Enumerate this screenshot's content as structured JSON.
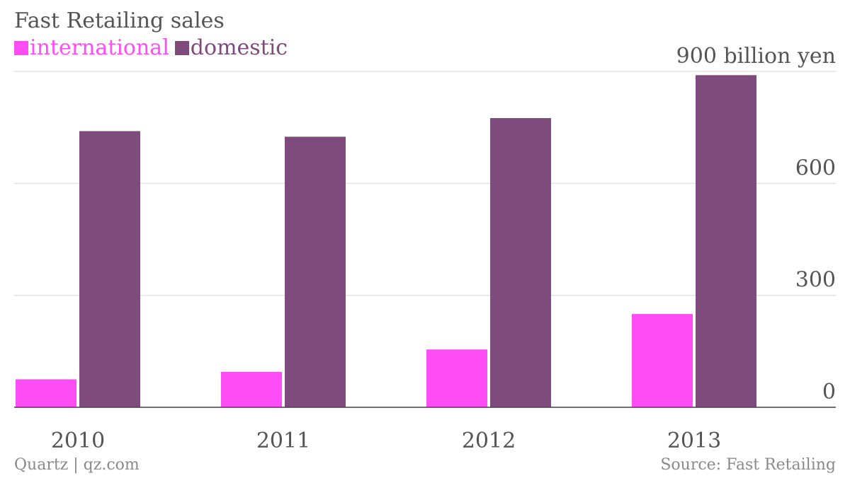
{
  "chart_data": {
    "type": "bar",
    "title": "Fast Retailing sales",
    "categories": [
      "2010",
      "2011",
      "2012",
      "2013"
    ],
    "series": [
      {
        "name": "international",
        "color": "#ff4df6",
        "values": [
          75,
          95,
          155,
          250
        ]
      },
      {
        "name": "domestic",
        "color": "#7f4b7d",
        "values": [
          740,
          725,
          775,
          890
        ]
      }
    ],
    "ylim": [
      0,
      900
    ],
    "yticks": [
      {
        "value": 0,
        "label": "0"
      },
      {
        "value": 300,
        "label": "300"
      },
      {
        "value": 600,
        "label": "600"
      },
      {
        "value": 900,
        "label": "900 billion yen"
      }
    ],
    "y_axis_position": "right",
    "legend_position": "top-left",
    "grid": true
  },
  "footer": {
    "credit": "Quartz | qz.com",
    "source": "Source: Fast Retailing"
  }
}
